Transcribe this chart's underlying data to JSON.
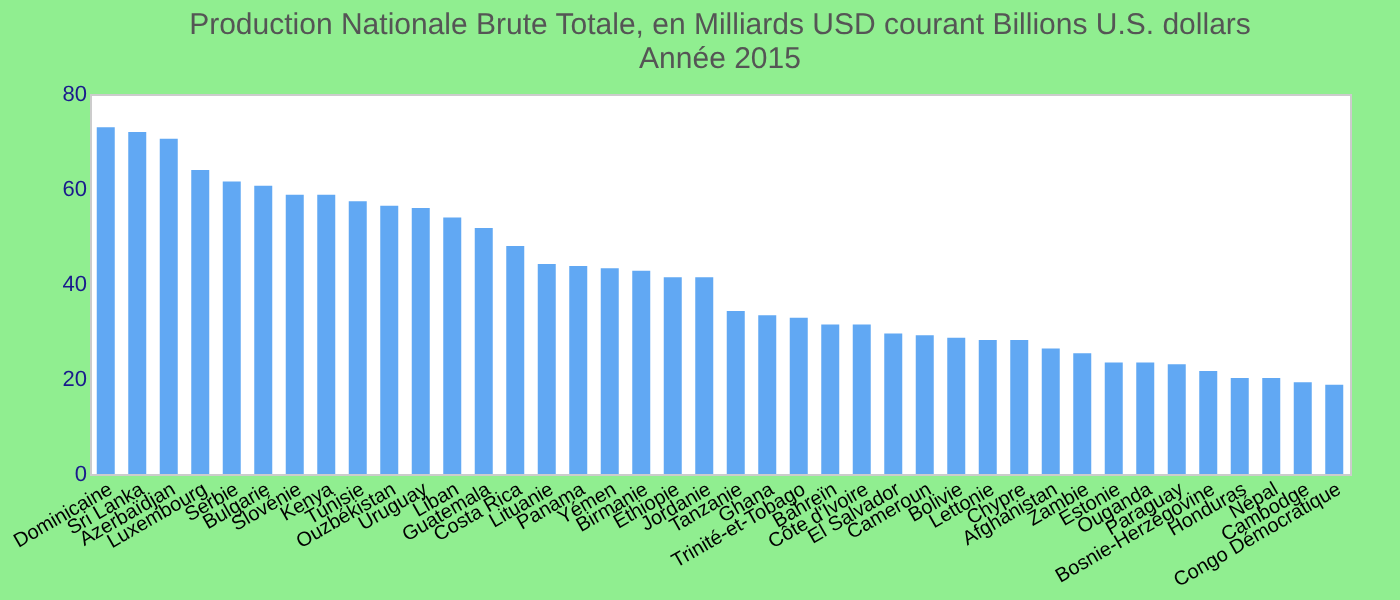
{
  "chart_data": {
    "type": "bar",
    "title": [
      "Production Nationale Brute Totale, en Milliards USD courant Billions U.S. dollars",
      "Année 2015"
    ],
    "categories": [
      "Dominicaine",
      "Sri Lanka",
      "Azerbaïdjan",
      "Luxembourg",
      "Serbie",
      "Bulgarie",
      "Slovénie",
      "Kenya",
      "Tunisie",
      "Ouzbékistan",
      "Uruguay",
      "Liban",
      "Guatemala",
      "Costa Rica",
      "Lituanie",
      "Panama",
      "Yémen",
      "Birmanie",
      "Éthiopie",
      "Jordanie",
      "Tanzanie",
      "Ghana",
      "Trinité-et-Tobago",
      "Bahreïn",
      "Côte d'Ivoire",
      "El Salvador",
      "Cameroun",
      "Bolivie",
      "Lettonie",
      "Chypre",
      "Afghanistan",
      "Zambie",
      "Estonie",
      "Ouganda",
      "Paraguay",
      "Bosnie-Herzégovine",
      "Honduras",
      "Népal",
      "Cambodge",
      "Congo Démocratique"
    ],
    "values": [
      73,
      72,
      70.6,
      64,
      61.6,
      60.7,
      58.8,
      58.8,
      57.4,
      56.5,
      56,
      54,
      51.8,
      48,
      44.2,
      43.8,
      43.3,
      42.8,
      41.4,
      41.4,
      34.3,
      33.4,
      32.9,
      31.5,
      31.5,
      29.6,
      29.2,
      28.7,
      28.2,
      28.2,
      26.4,
      25.4,
      23.5,
      23.5,
      23.1,
      21.7,
      20.2,
      20.2,
      19.3,
      18.8
    ],
    "color": "#61a8f3",
    "ylim": [
      0,
      80
    ],
    "yticks": [
      0,
      20,
      40,
      60,
      80
    ],
    "grid": false
  }
}
